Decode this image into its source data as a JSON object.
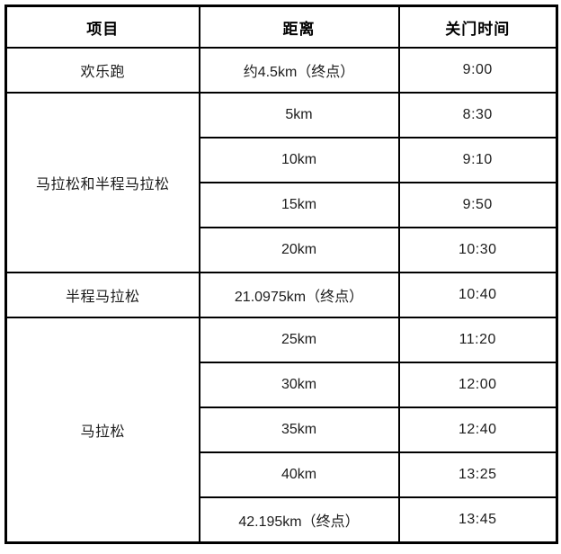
{
  "chart_data": {
    "type": "table",
    "columns": [
      "项目",
      "距离",
      "关门时间"
    ],
    "groups": [
      {
        "item": "欢乐跑",
        "rows": [
          {
            "distance": "约4.5km（终点）",
            "close_time": "9:00"
          }
        ]
      },
      {
        "item": "马拉松和半程马拉松",
        "rows": [
          {
            "distance": "5km",
            "close_time": "8:30"
          },
          {
            "distance": "10km",
            "close_time": "9:10"
          },
          {
            "distance": "15km",
            "close_time": "9:50"
          },
          {
            "distance": "20km",
            "close_time": "10:30"
          }
        ]
      },
      {
        "item": "半程马拉松",
        "rows": [
          {
            "distance": "21.0975km（终点）",
            "close_time": "10:40"
          }
        ]
      },
      {
        "item": "马拉松",
        "rows": [
          {
            "distance": "25km",
            "close_time": "11:20"
          },
          {
            "distance": "30km",
            "close_time": "12:00"
          },
          {
            "distance": "35km",
            "close_time": "12:40"
          },
          {
            "distance": "40km",
            "close_time": "13:25"
          },
          {
            "distance": "42.195km（终点）",
            "close_time": "13:45"
          }
        ]
      }
    ],
    "layout": {
      "grid": true,
      "border_color": "#000000",
      "background_color": "#ffffff",
      "text_color": "#1c1c1c"
    }
  }
}
